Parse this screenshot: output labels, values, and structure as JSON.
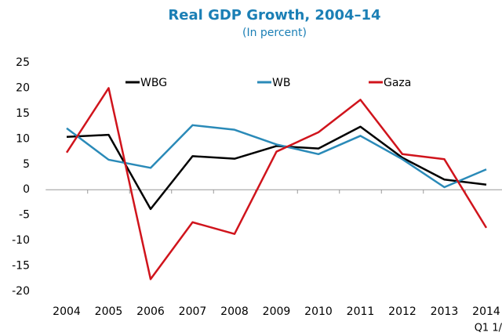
{
  "chart_data": {
    "type": "line",
    "title": "Real GDP Growth, 2004–14",
    "subtitle": "(In percent)",
    "annotation": "Q1 1/",
    "categories": [
      "2004",
      "2005",
      "2006",
      "2007",
      "2008",
      "2009",
      "2010",
      "2011",
      "2012",
      "2013",
      "2014"
    ],
    "series": [
      {
        "name": "WBG",
        "color": "#000000",
        "values": [
          10.4,
          10.8,
          -3.8,
          6.6,
          6.1,
          8.6,
          8.1,
          12.4,
          6.3,
          2.0,
          1.0
        ]
      },
      {
        "name": "WB",
        "color": "#2a8ab8",
        "values": [
          12.1,
          5.9,
          4.3,
          12.7,
          11.8,
          8.9,
          7.0,
          10.6,
          6.0,
          0.5,
          4.0
        ]
      },
      {
        "name": "Gaza",
        "color": "#d0141c",
        "values": [
          7.3,
          20.0,
          -17.6,
          -6.4,
          -8.7,
          7.5,
          11.3,
          17.7,
          7.0,
          6.0,
          -7.5
        ]
      }
    ],
    "ylim": [
      -20,
      25
    ],
    "yticks": [
      -20,
      -15,
      -10,
      -5,
      0,
      5,
      10,
      15,
      20,
      25
    ],
    "legend": "top"
  }
}
